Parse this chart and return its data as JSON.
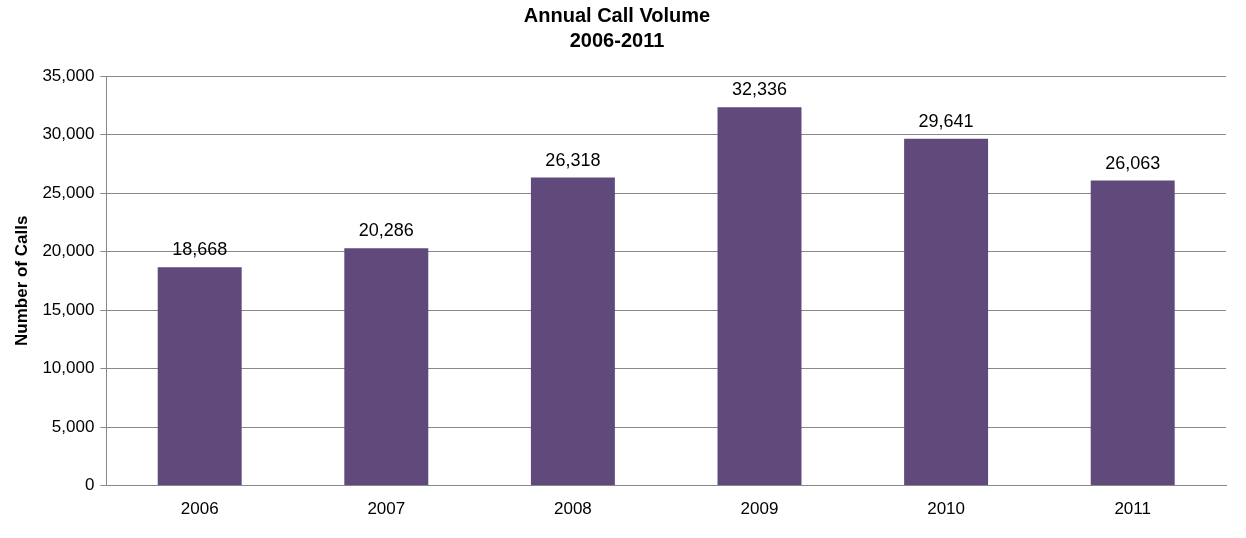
{
  "chart_data": {
    "type": "bar",
    "title": "Annual Call Volume\n2006-2011",
    "ylabel": "Number of Calls",
    "categories": [
      "2006",
      "2007",
      "2008",
      "2009",
      "2010",
      "2011"
    ],
    "values": [
      18668,
      20286,
      26318,
      32336,
      29641,
      26063
    ],
    "value_labels": [
      "18,668",
      "20,286",
      "26,318",
      "32,336",
      "29,641",
      "26,063"
    ],
    "color": "#604a7b",
    "ylim": [
      0,
      35000
    ],
    "yticks": [
      0,
      {
        "value": 5000,
        "label": "5,000"
      },
      {
        "value": 10000,
        "label": "10,000"
      },
      {
        "value": 15000,
        "label": "15,000"
      },
      {
        "value": 20000,
        "label": "20,000"
      },
      {
        "value": 25000,
        "label": "25,000"
      },
      {
        "value": 30000,
        "label": "30,000"
      },
      {
        "value": 35000,
        "label": "35,000"
      }
    ],
    "grid": "y"
  }
}
